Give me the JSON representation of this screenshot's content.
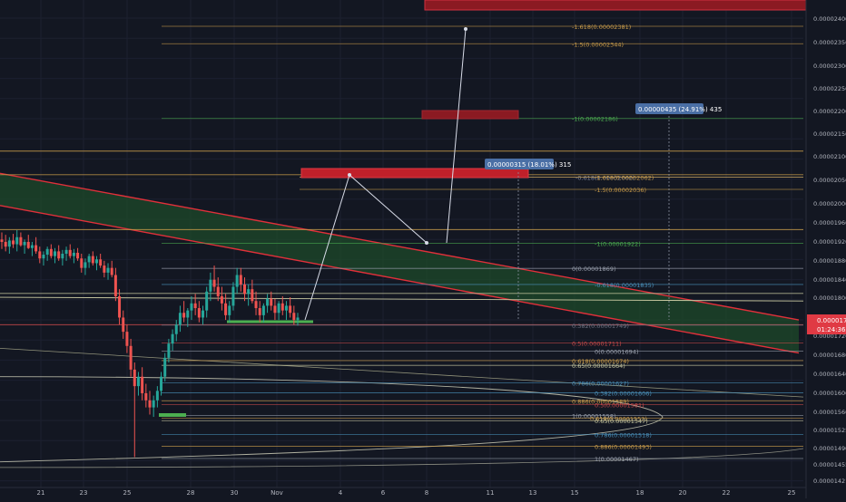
{
  "chart_data": {
    "type": "candlestick",
    "title": "",
    "grid": true,
    "ylim": [
      1.421e-05,
      2.425e-05
    ],
    "price_axis": {
      "ticks": [
        "0.00002400",
        "0.00002350",
        "0.00002300",
        "0.00002250",
        "0.00002200",
        "0.00002150",
        "0.00002100",
        "0.00002050",
        "0.00002000",
        "0.00001960",
        "0.00001920",
        "0.00001880",
        "0.00001840",
        "0.00001800",
        "0.00001760",
        "0.00001720",
        "0.00001680",
        "0.00001640",
        "0.00001600",
        "0.00001560",
        "0.00001525",
        "0.00001490",
        "0.00001455",
        "0.00001421"
      ],
      "current_price": "0.00001750",
      "countdown": "01:24:36",
      "current_label": "0.00001726"
    },
    "time_axis": {
      "ticks": [
        "21",
        "23",
        "25",
        "28",
        "30",
        "Nov",
        "4",
        "6",
        "8",
        "11",
        "13",
        "15",
        "18",
        "20",
        "22",
        "25"
      ]
    },
    "fib_levels": [
      {
        "label": "-1.618(0.00002381)",
        "price": 2.381e-05,
        "color": "#c89b4a"
      },
      {
        "label": "-1.5(0.00002344)",
        "price": 2.344e-05,
        "color": "#c89b4a"
      },
      {
        "label": "-1(0.00002186)",
        "price": 2.186e-05,
        "color": "#4caf50"
      },
      {
        "label": "-0.618(0.00002062)",
        "price": 2.062e-05,
        "color": "#7e8598"
      },
      {
        "label": "-1.618(0.00002062)",
        "price": 2.062e-05,
        "color": "#c89b4a"
      },
      {
        "label": "-1.5(0.00002036)",
        "price": 2.036e-05,
        "color": "#c89b4a"
      },
      {
        "label": "-1(0.00001922)",
        "price": 1.922e-05,
        "color": "#4caf50"
      },
      {
        "label": "0(0.00001869)",
        "price": 1.869e-05,
        "color": "#9aa0ad"
      },
      {
        "label": "-0.618(0.00001835)",
        "price": 1.835e-05,
        "color": "#4a8fb8"
      },
      {
        "label": "0.382(0.00001749)",
        "price": 1.749e-05,
        "color": "#6a7080"
      },
      {
        "label": "0.5(0.00001711)",
        "price": 1.711e-05,
        "color": "#c84a4a"
      },
      {
        "label": "0(0.00001694)",
        "price": 1.694e-05,
        "color": "#9aa0ad"
      },
      {
        "label": "0.618(0.00001674)",
        "price": 1.674e-05,
        "color": "#c89b4a"
      },
      {
        "label": "0.65(0.00001664)",
        "price": 1.664e-05,
        "color": "#c8c8a0"
      },
      {
        "label": "0.786(0.00001627)",
        "price": 1.627e-05,
        "color": "#4a8fb8"
      },
      {
        "label": "0.382(0.00001606)",
        "price": 1.606e-05,
        "color": "#4a8fb8"
      },
      {
        "label": "0.886(0.00001589)",
        "price": 1.589e-05,
        "color": "#c89b4a"
      },
      {
        "label": "0.5(0.00001581)",
        "price": 1.581e-05,
        "color": "#c84a4a"
      },
      {
        "label": "1(0.00001558)",
        "price": 1.558e-05,
        "color": "#9aa0ad"
      },
      {
        "label": "0.618(0.00001552)",
        "price": 1.552e-05,
        "color": "#c89b4a"
      },
      {
        "label": "0.65(0.00001547)",
        "price": 1.547e-05,
        "color": "#c8c8a0"
      },
      {
        "label": "0.786(0.00001518)",
        "price": 1.518e-05,
        "color": "#4a8fb8"
      },
      {
        "label": "0.886(0.00001493)",
        "price": 1.493e-05,
        "color": "#c89b4a"
      },
      {
        "label": "1(0.00001467)",
        "price": 1.467e-05,
        "color": "#9aa0ad"
      }
    ],
    "horizontal_lines": [
      {
        "price": 2.117e-05,
        "color": "#c89b4a"
      },
      {
        "price": 2.067e-05,
        "color": "#c89b4a"
      },
      {
        "price": 1.951e-05,
        "color": "#c89b4a"
      },
      {
        "price": 1.816e-05,
        "color": "#c8c8a0"
      },
      {
        "price": 1.75e-05,
        "color": "#e05050"
      }
    ],
    "channel": {
      "upper": {
        "x0": 0,
        "p0": 2.002e-05,
        "x1": 880,
        "p1": 1.69e-05
      },
      "lower": {
        "x0": 0,
        "p0": 2.07e-05,
        "x1": 880,
        "p1": 1.76e-05
      },
      "fill": "#1e4a2a",
      "line": "#e0303a"
    },
    "measure_labels": [
      {
        "text": "0.00000315 (18.01%) 315"
      },
      {
        "text": "0.00000435 (24.91%) 435"
      }
    ],
    "zones": [
      {
        "name": "supply-zone-top",
        "color": "#8b1a22"
      },
      {
        "name": "supply-zone-mid",
        "color": "#8b1a22"
      },
      {
        "name": "supply-zone-main",
        "color": "#c0202a"
      }
    ],
    "candles": [
      [
        1.93e-05,
        1.945e-05,
        1.91e-05,
        1.925e-05
      ],
      [
        1.925e-05,
        1.94e-05,
        1.905e-05,
        1.915e-05
      ],
      [
        1.915e-05,
        1.935e-05,
        1.9e-05,
        1.928e-05
      ],
      [
        1.928e-05,
        1.942e-05,
        1.912e-05,
        1.92e-05
      ],
      [
        1.92e-05,
        1.95e-05,
        1.905e-05,
        1.935e-05
      ],
      [
        1.935e-05,
        1.945e-05,
        1.915e-05,
        1.918e-05
      ],
      [
        1.918e-05,
        1.93e-05,
        1.9e-05,
        1.925e-05
      ],
      [
        1.925e-05,
        1.94e-05,
        1.91e-05,
        1.912e-05
      ],
      [
        1.912e-05,
        1.925e-05,
        1.895e-05,
        1.918e-05
      ],
      [
        1.918e-05,
        1.935e-05,
        1.9e-05,
        1.905e-05
      ],
      [
        1.905e-05,
        1.915e-05,
        1.88e-05,
        1.89e-05
      ],
      [
        1.89e-05,
        1.905e-05,
        1.875e-05,
        1.898e-05
      ],
      [
        1.898e-05,
        1.915e-05,
        1.885e-05,
        1.91e-05
      ],
      [
        1.91e-05,
        1.92e-05,
        1.89e-05,
        1.895e-05
      ],
      [
        1.895e-05,
        1.912e-05,
        1.88e-05,
        1.905e-05
      ],
      [
        1.905e-05,
        1.918e-05,
        1.885e-05,
        1.89e-05
      ],
      [
        1.89e-05,
        1.908e-05,
        1.875e-05,
        1.9e-05
      ],
      [
        1.9e-05,
        1.915e-05,
        1.885e-05,
        1.908e-05
      ],
      [
        1.908e-05,
        1.92e-05,
        1.89e-05,
        1.895e-05
      ],
      [
        1.895e-05,
        1.91e-05,
        1.88e-05,
        1.902e-05
      ],
      [
        1.902e-05,
        1.912e-05,
        1.885e-05,
        1.89e-05
      ],
      [
        1.89e-05,
        1.9e-05,
        1.86e-05,
        1.87e-05
      ],
      [
        1.87e-05,
        1.89e-05,
        1.855e-05,
        1.882e-05
      ],
      [
        1.882e-05,
        1.9e-05,
        1.87e-05,
        1.895e-05
      ],
      [
        1.895e-05,
        1.905e-05,
        1.875e-05,
        1.88e-05
      ],
      [
        1.88e-05,
        1.895e-05,
        1.865e-05,
        1.888e-05
      ],
      [
        1.888e-05,
        1.9e-05,
        1.87e-05,
        1.875e-05
      ],
      [
        1.875e-05,
        1.885e-05,
        1.85e-05,
        1.86e-05
      ],
      [
        1.86e-05,
        1.88e-05,
        1.845e-05,
        1.87e-05
      ],
      [
        1.87e-05,
        1.885e-05,
        1.85e-05,
        1.855e-05
      ],
      [
        1.855e-05,
        1.87e-05,
        1.8e-05,
        1.81e-05
      ],
      [
        1.81e-05,
        1.825e-05,
        1.75e-05,
        1.765e-05
      ],
      [
        1.765e-05,
        1.78e-05,
        1.72e-05,
        1.735e-05
      ],
      [
        1.735e-05,
        1.75e-05,
        1.69e-05,
        1.705e-05
      ],
      [
        1.705e-05,
        1.72e-05,
        1.64e-05,
        1.655e-05
      ],
      [
        1.655e-05,
        1.67e-05,
        1.47e-05,
        1.62e-05
      ],
      [
        1.62e-05,
        1.65e-05,
        1.6e-05,
        1.64e-05
      ],
      [
        1.64e-05,
        1.66e-05,
        1.59e-05,
        1.605e-05
      ],
      [
        1.605e-05,
        1.625e-05,
        1.575e-05,
        1.59e-05
      ],
      [
        1.59e-05,
        1.61e-05,
        1.56e-05,
        1.575e-05
      ],
      [
        1.575e-05,
        1.6e-05,
        1.555e-05,
        1.59e-05
      ],
      [
        1.59e-05,
        1.62e-05,
        1.575e-05,
        1.61e-05
      ],
      [
        1.61e-05,
        1.65e-05,
        1.6e-05,
        1.64e-05
      ],
      [
        1.64e-05,
        1.69e-05,
        1.63e-05,
        1.68e-05
      ],
      [
        1.68e-05,
        1.72e-05,
        1.67e-05,
        1.71e-05
      ],
      [
        1.71e-05,
        1.74e-05,
        1.695e-05,
        1.73e-05
      ],
      [
        1.73e-05,
        1.76e-05,
        1.715e-05,
        1.75e-05
      ],
      [
        1.75e-05,
        1.79e-05,
        1.735e-05,
        1.775e-05
      ],
      [
        1.775e-05,
        1.8e-05,
        1.755e-05,
        1.765e-05
      ],
      [
        1.765e-05,
        1.785e-05,
        1.745e-05,
        1.78e-05
      ],
      [
        1.78e-05,
        1.81e-05,
        1.76e-05,
        1.795e-05
      ],
      [
        1.795e-05,
        1.815e-05,
        1.77e-05,
        1.785e-05
      ],
      [
        1.785e-05,
        1.8e-05,
        1.755e-05,
        1.765e-05
      ],
      [
        1.765e-05,
        1.79e-05,
        1.75e-05,
        1.78e-05
      ],
      [
        1.78e-05,
        1.83e-05,
        1.765e-05,
        1.82e-05
      ],
      [
        1.82e-05,
        1.86e-05,
        1.8e-05,
        1.845e-05
      ],
      [
        1.845e-05,
        1.875e-05,
        1.82e-05,
        1.83e-05
      ],
      [
        1.83e-05,
        1.85e-05,
        1.8e-05,
        1.81e-05
      ],
      [
        1.81e-05,
        1.83e-05,
        1.78e-05,
        1.795e-05
      ],
      [
        1.795e-05,
        1.815e-05,
        1.76e-05,
        1.77e-05
      ],
      [
        1.77e-05,
        1.8e-05,
        1.755e-05,
        1.79e-05
      ],
      [
        1.79e-05,
        1.84e-05,
        1.78e-05,
        1.83e-05
      ],
      [
        1.83e-05,
        1.87e-05,
        1.815e-05,
        1.855e-05
      ],
      [
        1.855e-05,
        1.87e-05,
        1.82e-05,
        1.835e-05
      ],
      [
        1.835e-05,
        1.85e-05,
        1.8e-05,
        1.815e-05
      ],
      [
        1.815e-05,
        1.835e-05,
        1.79e-05,
        1.825e-05
      ],
      [
        1.825e-05,
        1.845e-05,
        1.795e-05,
        1.8e-05
      ],
      [
        1.8e-05,
        1.82e-05,
        1.77e-05,
        1.785e-05
      ],
      [
        1.785e-05,
        1.8e-05,
        1.755e-05,
        1.77e-05
      ],
      [
        1.77e-05,
        1.795e-05,
        1.755e-05,
        1.79e-05
      ],
      [
        1.79e-05,
        1.815e-05,
        1.775e-05,
        1.805e-05
      ],
      [
        1.805e-05,
        1.82e-05,
        1.78e-05,
        1.79e-05
      ],
      [
        1.79e-05,
        1.805e-05,
        1.76e-05,
        1.775e-05
      ],
      [
        1.775e-05,
        1.8e-05,
        1.76e-05,
        1.795e-05
      ],
      [
        1.795e-05,
        1.81e-05,
        1.77e-05,
        1.78e-05
      ],
      [
        1.78e-05,
        1.8e-05,
        1.76e-05,
        1.79e-05
      ],
      [
        1.79e-05,
        1.808e-05,
        1.765e-05,
        1.775e-05
      ],
      [
        1.775e-05,
        1.79e-05,
        1.75e-05,
        1.76e-05
      ],
      [
        1.76e-05,
        1.775e-05,
        1.748e-05,
        1.765e-05
      ]
    ]
  }
}
